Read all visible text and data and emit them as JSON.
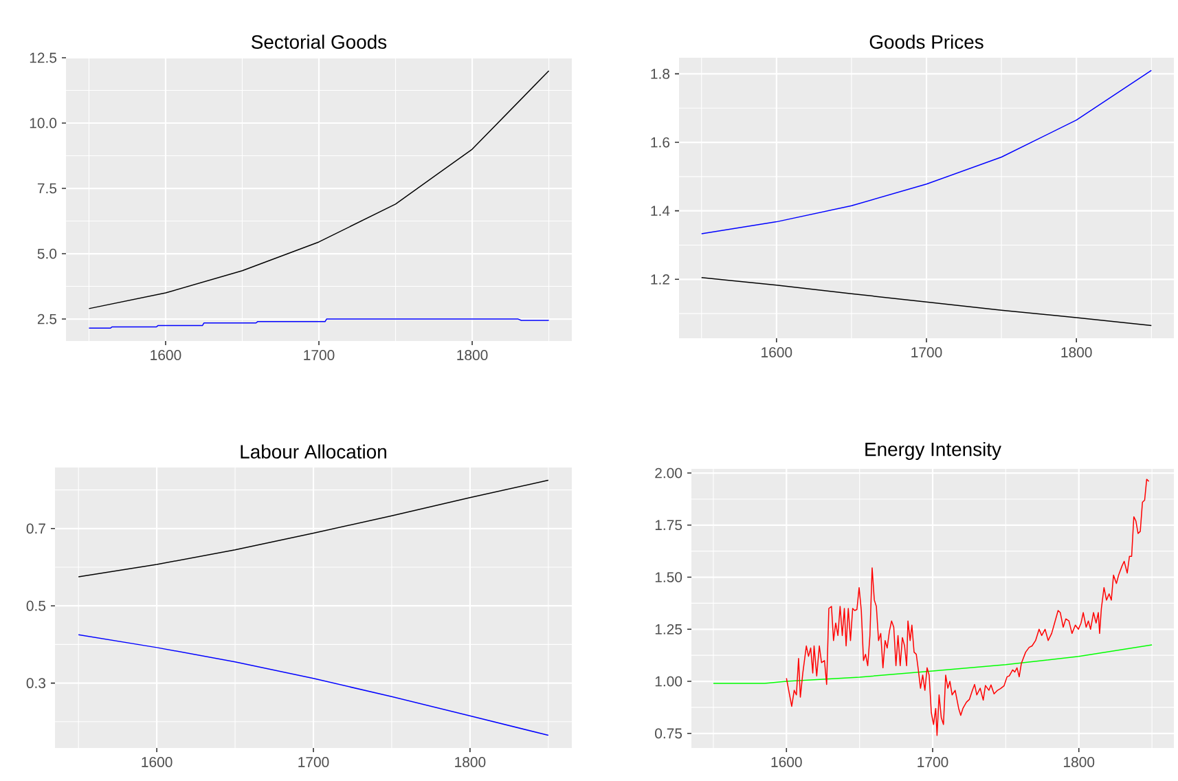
{
  "chart_data": [
    {
      "type": "line",
      "title": "Sectorial Goods",
      "x": [
        1550,
        1600,
        1650,
        1700,
        1750,
        1800,
        1850
      ],
      "xlim": [
        1535,
        1865
      ],
      "xticks": [
        1600,
        1700,
        1800
      ],
      "ylim": [
        1.66,
        12.5
      ],
      "yticks": [
        2.5,
        {
          "value": 5,
          "label": "5.0"
        },
        7.5,
        {
          "value": 10,
          "label": "10.0"
        },
        12.5
      ],
      "grid": true,
      "series": [
        {
          "color": "#000000",
          "values": [
            2.9,
            3.5,
            4.35,
            5.45,
            6.9,
            9.0,
            12.0
          ]
        },
        {
          "color": "#0000ff",
          "x": [
            1550,
            1564,
            1565,
            1594,
            1595,
            1624,
            1625,
            1659,
            1660,
            1704,
            1705,
            1830,
            1832,
            1850
          ],
          "values": [
            2.15,
            2.15,
            2.2,
            2.2,
            2.25,
            2.25,
            2.35,
            2.35,
            2.4,
            2.4,
            2.5,
            2.5,
            2.45,
            2.45
          ]
        }
      ]
    },
    {
      "type": "line",
      "title": "Goods Prices",
      "x": [
        1550,
        1600,
        1650,
        1700,
        1750,
        1800,
        1850
      ],
      "xlim": [
        1535,
        1865
      ],
      "xticks": [
        1600,
        1700,
        1800
      ],
      "ylim": [
        1.028,
        1.847
      ],
      "yticks": [
        1.2,
        1.4,
        1.6,
        1.8
      ],
      "grid": true,
      "series": [
        {
          "color": "#0000ff",
          "values": [
            1.333,
            1.368,
            1.415,
            1.478,
            1.557,
            1.665,
            1.81
          ]
        },
        {
          "color": "#000000",
          "values": [
            1.205,
            1.183,
            1.158,
            1.134,
            1.11,
            1.088,
            1.065
          ]
        }
      ]
    },
    {
      "type": "line",
      "title": "Labour Allocation",
      "x": [
        1550,
        1600,
        1650,
        1700,
        1750,
        1800,
        1850
      ],
      "xlim": [
        1535,
        1865
      ],
      "xticks": [
        1600,
        1700,
        1800
      ],
      "ylim": [
        0.132,
        0.858
      ],
      "yticks": [
        0.3,
        0.5,
        0.7
      ],
      "grid": true,
      "series": [
        {
          "color": "#000000",
          "values": [
            0.575,
            0.607,
            0.645,
            0.688,
            0.733,
            0.78,
            0.825
          ]
        },
        {
          "color": "#0000ff",
          "values": [
            0.425,
            0.392,
            0.355,
            0.312,
            0.265,
            0.215,
            0.165
          ]
        }
      ]
    },
    {
      "type": "line",
      "title": "Energy Intensity",
      "xlim": [
        1535,
        1865
      ],
      "xticks": [
        1600,
        1700,
        1800
      ],
      "ylim": [
        0.68,
        2.02
      ],
      "yticks": [
        0.75,
        {
          "value": 1,
          "label": "1.00"
        },
        1.25,
        {
          "value": 1.5,
          "label": "1.50"
        },
        1.75,
        {
          "value": 2,
          "label": "2.00"
        }
      ],
      "grid": true,
      "series": [
        {
          "color": "#00ff00",
          "x": [
            1550,
            1585,
            1600,
            1650,
            1700,
            1750,
            1800,
            1850
          ],
          "values": [
            0.99,
            0.99,
            1.0,
            1.02,
            1.05,
            1.08,
            1.12,
            1.175
          ]
        },
        {
          "color": "#ff0000",
          "x": [
            1600,
            1603.6,
            1605.3,
            1606.8,
            1608.3,
            1609.5,
            1611.2,
            1613.6,
            1615.1,
            1616.6,
            1618,
            1618.9,
            1620.7,
            1622.5,
            1624,
            1626,
            1627.5,
            1629,
            1630.8,
            1632.2,
            1633.7,
            1635.2,
            1636.7,
            1638.2,
            1639.6,
            1640.8,
            1642.3,
            1643.8,
            1645.3,
            1646.7,
            1648.2,
            1649.7,
            1651.2,
            1652.7,
            1654.1,
            1655.6,
            1657.1,
            1658.6,
            1660.1,
            1661.5,
            1663,
            1664.5,
            1666,
            1667.5,
            1668.9,
            1670.4,
            1671.9,
            1673.4,
            1674.9,
            1676.3,
            1677.8,
            1679.3,
            1680.8,
            1682.2,
            1683.1,
            1684.6,
            1685.8,
            1687.3,
            1688.8,
            1690.2,
            1691.7,
            1693.2,
            1694.7,
            1696.2,
            1697.6,
            1699.1,
            1700.6,
            1702.1,
            1703,
            1704.4,
            1705.9,
            1707.4,
            1708.9,
            1710.4,
            1711.8,
            1713.3,
            1715.4,
            1717.8,
            1719.2,
            1720.7,
            1723.1,
            1725.1,
            1727.2,
            1728.7,
            1730.2,
            1732.5,
            1734.6,
            1736.1,
            1738.5,
            1739.9,
            1742,
            1744.4,
            1746.4,
            1748.8,
            1750.9,
            1752.4,
            1754.7,
            1756.2,
            1757.7,
            1759.2,
            1760.7,
            1763.6,
            1766,
            1768,
            1770.4,
            1772.8,
            1774.6,
            1776.9,
            1779,
            1781.4,
            1783.4,
            1785.8,
            1787.3,
            1789.3,
            1791.1,
            1793.2,
            1795.3,
            1797.6,
            1799.7,
            1801.5,
            1803,
            1805,
            1806.5,
            1808,
            1810,
            1811.8,
            1813.3,
            1814.2,
            1815.4,
            1817.2,
            1818.9,
            1820.7,
            1822.2,
            1823.7,
            1825.7,
            1827.2,
            1829.6,
            1831,
            1833.1,
            1834.6,
            1836.1,
            1837.6,
            1839,
            1840.5,
            1842,
            1843.5,
            1845,
            1846.4,
            1847.9
          ],
          "values": [
            1.015,
            0.88,
            0.957,
            0.935,
            1.11,
            0.924,
            1.04,
            1.17,
            1.12,
            1.16,
            1.04,
            1.17,
            1.026,
            1.17,
            1.09,
            1.1,
            0.985,
            1.35,
            1.36,
            1.196,
            1.28,
            1.22,
            1.36,
            1.22,
            1.35,
            1.17,
            1.35,
            1.196,
            1.35,
            1.34,
            1.345,
            1.45,
            1.34,
            1.1,
            1.13,
            1.075,
            1.22,
            1.545,
            1.39,
            1.36,
            1.196,
            1.23,
            1.065,
            1.196,
            1.16,
            1.24,
            1.29,
            1.26,
            1.075,
            1.22,
            1.075,
            1.21,
            1.17,
            1.075,
            1.29,
            1.196,
            1.27,
            1.14,
            1.13,
            1.055,
            0.967,
            1.03,
            0.957,
            1.065,
            1.03,
            0.85,
            0.793,
            0.87,
            0.74,
            0.935,
            0.826,
            0.793,
            1.03,
            0.967,
            1.0,
            0.935,
            0.957,
            0.87,
            0.837,
            0.87,
            0.9,
            0.913,
            0.957,
            0.985,
            0.935,
            0.967,
            0.91,
            0.98,
            0.957,
            0.983,
            0.94,
            0.957,
            0.965,
            0.978,
            1.022,
            1.026,
            1.055,
            1.045,
            1.065,
            1.022,
            1.087,
            1.14,
            1.163,
            1.17,
            1.196,
            1.25,
            1.22,
            1.25,
            1.196,
            1.23,
            1.28,
            1.34,
            1.33,
            1.26,
            1.3,
            1.29,
            1.23,
            1.27,
            1.25,
            1.28,
            1.33,
            1.26,
            1.29,
            1.25,
            1.33,
            1.28,
            1.33,
            1.23,
            1.35,
            1.45,
            1.39,
            1.42,
            1.39,
            1.51,
            1.47,
            1.51,
            1.555,
            1.576,
            1.52,
            1.6,
            1.6,
            1.79,
            1.77,
            1.71,
            1.72,
            1.86,
            1.87,
            1.97,
            1.96
          ]
        }
      ]
    }
  ]
}
